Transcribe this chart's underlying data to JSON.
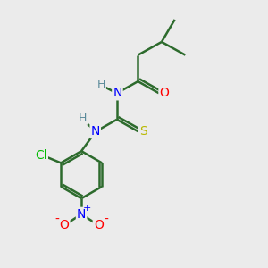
{
  "background_color": "#ebebeb",
  "bond_color": "#2d6b2d",
  "bond_width": 1.8,
  "atom_colors": {
    "N": "#0000ff",
    "O": "#ff0000",
    "S": "#b8b800",
    "Cl": "#00bb00",
    "H": "#5a8a9a",
    "C": "#2d6b2d"
  },
  "figsize": [
    3.0,
    3.0
  ],
  "dpi": 100
}
